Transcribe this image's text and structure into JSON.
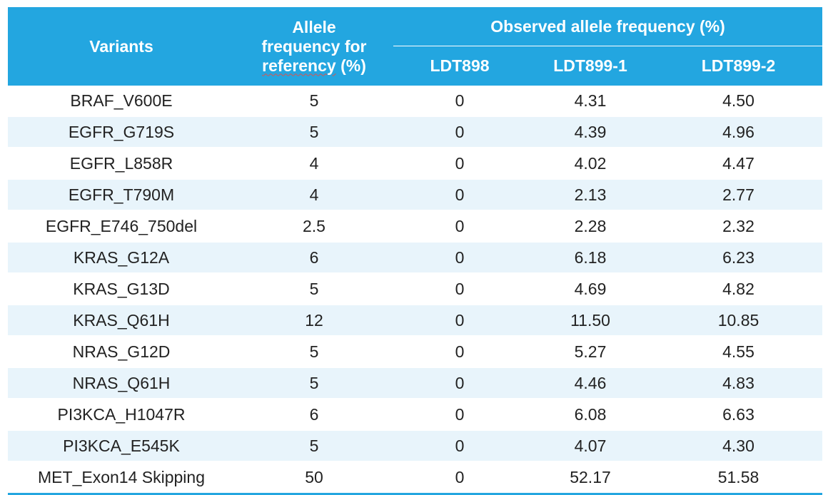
{
  "headers": {
    "variants": "Variants",
    "ref_line1": "Allele",
    "ref_line2": "frequency for",
    "ref_line3_word": "referency",
    "ref_line3_unit": " (%)",
    "observed_group": "Observed allele frequency (%)",
    "ldt898": "LDT898",
    "ldt899_1": "LDT899-1",
    "ldt899_2": "LDT899-2"
  },
  "rows": [
    {
      "variant": "BRAF_V600E",
      "ref": "5",
      "ldt898": "0",
      "ldt899_1": "4.31",
      "ldt899_2": "4.50"
    },
    {
      "variant": "EGFR_G719S",
      "ref": "5",
      "ldt898": "0",
      "ldt899_1": "4.39",
      "ldt899_2": "4.96"
    },
    {
      "variant": "EGFR_L858R",
      "ref": "4",
      "ldt898": "0",
      "ldt899_1": "4.02",
      "ldt899_2": "4.47"
    },
    {
      "variant": "EGFR_T790M",
      "ref": "4",
      "ldt898": "0",
      "ldt899_1": "2.13",
      "ldt899_2": "2.77"
    },
    {
      "variant": "EGFR_E746_750del",
      "ref": "2.5",
      "ldt898": "0",
      "ldt899_1": "2.28",
      "ldt899_2": "2.32"
    },
    {
      "variant": "KRAS_G12A",
      "ref": "6",
      "ldt898": "0",
      "ldt899_1": "6.18",
      "ldt899_2": "6.23"
    },
    {
      "variant": "KRAS_G13D",
      "ref": "5",
      "ldt898": "0",
      "ldt899_1": "4.69",
      "ldt899_2": "4.82"
    },
    {
      "variant": "KRAS_Q61H",
      "ref": "12",
      "ldt898": "0",
      "ldt899_1": "11.50",
      "ldt899_2": "10.85"
    },
    {
      "variant": "NRAS_G12D",
      "ref": "5",
      "ldt898": "0",
      "ldt899_1": "5.27",
      "ldt899_2": "4.55"
    },
    {
      "variant": "NRAS_Q61H",
      "ref": "5",
      "ldt898": "0",
      "ldt899_1": "4.46",
      "ldt899_2": "4.83"
    },
    {
      "variant": "PI3KCA_H1047R",
      "ref": "6",
      "ldt898": "0",
      "ldt899_1": "6.08",
      "ldt899_2": "6.63"
    },
    {
      "variant": "PI3KCA_E545K",
      "ref": "5",
      "ldt898": "0",
      "ldt899_1": "4.07",
      "ldt899_2": "4.30"
    },
    {
      "variant": "MET_Exon14 Skipping",
      "ref": "50",
      "ldt898": "0",
      "ldt899_1": "52.17",
      "ldt899_2": "51.58"
    }
  ],
  "colors": {
    "header_bg": "#23a6e0",
    "stripe_bg": "#e8f4fb",
    "text": "#222222"
  }
}
